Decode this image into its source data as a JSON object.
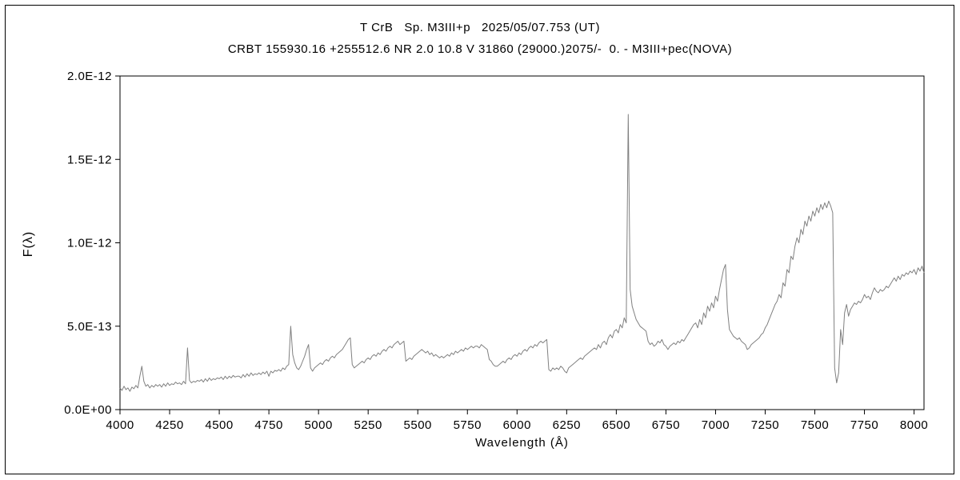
{
  "chart_data": {
    "type": "line",
    "title": "T CrB   Sp. M3III+p   2025/05/07.753 (UT)",
    "subtitle": "CRBT 155930.16 +255512.6 NR 2.0 10.8 V 31860 (29000.)2075/-  0. - M3III+pec(NOVA)",
    "xlabel": "Wavelength (Å)",
    "ylabel": "F(λ)",
    "xlim": [
      4000,
      8050
    ],
    "ylim": [
      0,
      2e-12
    ],
    "grid": false,
    "legend": null,
    "line_color": "#808080",
    "axis_color": "#000000",
    "x_ticks": [
      {
        "value": 4000,
        "label": "4000"
      },
      {
        "value": 4250,
        "label": "4250"
      },
      {
        "value": 4500,
        "label": "4500"
      },
      {
        "value": 4750,
        "label": "4750"
      },
      {
        "value": 5000,
        "label": "5000"
      },
      {
        "value": 5250,
        "label": "5250"
      },
      {
        "value": 5500,
        "label": "5500"
      },
      {
        "value": 5750,
        "label": "5750"
      },
      {
        "value": 6000,
        "label": "6000"
      },
      {
        "value": 6250,
        "label": "6250"
      },
      {
        "value": 6500,
        "label": "6500"
      },
      {
        "value": 6750,
        "label": "6750"
      },
      {
        "value": 7000,
        "label": "7000"
      },
      {
        "value": 7250,
        "label": "7250"
      },
      {
        "value": 7500,
        "label": "7500"
      },
      {
        "value": 7750,
        "label": "7750"
      },
      {
        "value": 8000,
        "label": "8000"
      }
    ],
    "y_ticks": [
      {
        "value": 0,
        "label": "0.0E+00"
      },
      {
        "value": 5e-13,
        "label": "5.0E-13"
      },
      {
        "value": 1e-12,
        "label": "1.0E-12"
      },
      {
        "value": 1.5e-12,
        "label": "1.5E-12"
      },
      {
        "value": 2e-12,
        "label": "2.0E-12"
      }
    ],
    "series_name": "T CrB spectrum",
    "x_start": 4000,
    "x_step": 10,
    "flux_unit_scale": 1e-13,
    "flux": [
      1.3,
      1.15,
      1.4,
      1.2,
      1.3,
      1.1,
      1.35,
      1.25,
      1.45,
      1.3,
      2.0,
      2.6,
      1.7,
      1.4,
      1.5,
      1.3,
      1.45,
      1.35,
      1.5,
      1.4,
      1.5,
      1.35,
      1.55,
      1.4,
      1.6,
      1.45,
      1.55,
      1.5,
      1.65,
      1.55,
      1.6,
      1.5,
      1.7,
      1.55,
      3.7,
      1.75,
      1.6,
      1.7,
      1.65,
      1.75,
      1.7,
      1.8,
      1.65,
      1.85,
      1.7,
      1.9,
      1.75,
      1.85,
      1.8,
      1.9,
      1.85,
      1.95,
      1.8,
      2.0,
      1.85,
      2.0,
      1.9,
      2.05,
      1.95,
      2.0,
      2.0,
      1.9,
      2.1,
      1.95,
      2.15,
      2.0,
      2.2,
      2.05,
      2.15,
      2.1,
      2.2,
      2.1,
      2.25,
      2.15,
      2.3,
      2.0,
      2.3,
      2.2,
      2.35,
      2.3,
      2.4,
      2.3,
      2.5,
      2.4,
      2.6,
      2.7,
      5.0,
      3.3,
      2.8,
      2.5,
      2.4,
      2.6,
      2.9,
      3.2,
      3.6,
      3.9,
      2.5,
      2.3,
      2.5,
      2.6,
      2.7,
      2.8,
      2.7,
      2.9,
      3.0,
      2.9,
      3.1,
      3.2,
      3.1,
      3.3,
      3.4,
      3.5,
      3.6,
      3.8,
      4.0,
      4.2,
      4.3,
      2.7,
      2.5,
      2.6,
      2.7,
      2.8,
      2.9,
      2.8,
      3.0,
      3.1,
      3.0,
      3.2,
      3.3,
      3.2,
      3.4,
      3.3,
      3.5,
      3.6,
      3.5,
      3.7,
      3.8,
      3.7,
      3.9,
      4.0,
      4.1,
      3.9,
      4.0,
      4.1,
      2.9,
      3.0,
      3.1,
      3.0,
      3.2,
      3.3,
      3.4,
      3.5,
      3.6,
      3.5,
      3.4,
      3.5,
      3.3,
      3.4,
      3.2,
      3.3,
      3.2,
      3.1,
      3.2,
      3.1,
      3.2,
      3.3,
      3.2,
      3.4,
      3.3,
      3.5,
      3.4,
      3.5,
      3.6,
      3.5,
      3.7,
      3.6,
      3.7,
      3.8,
      3.7,
      3.8,
      3.8,
      3.7,
      3.9,
      3.8,
      3.7,
      3.6,
      3.0,
      2.9,
      2.7,
      2.6,
      2.6,
      2.7,
      2.8,
      2.9,
      2.8,
      3.0,
      3.1,
      3.0,
      3.2,
      3.3,
      3.2,
      3.4,
      3.3,
      3.5,
      3.6,
      3.5,
      3.7,
      3.8,
      3.7,
      3.9,
      3.8,
      4.0,
      4.1,
      4.0,
      4.1,
      4.2,
      2.4,
      2.3,
      2.5,
      2.4,
      2.5,
      2.4,
      2.6,
      2.5,
      2.3,
      2.2,
      2.5,
      2.6,
      2.7,
      2.8,
      2.9,
      3.0,
      3.1,
      3.0,
      3.2,
      3.3,
      3.4,
      3.5,
      3.6,
      3.7,
      3.6,
      3.9,
      3.7,
      4.0,
      4.1,
      3.9,
      4.3,
      4.5,
      4.3,
      4.7,
      4.8,
      4.6,
      5.1,
      4.9,
      5.5,
      5.2,
      17.7,
      7.2,
      6.2,
      5.8,
      5.4,
      5.2,
      5.0,
      4.9,
      4.8,
      4.7,
      4.1,
      3.9,
      4.0,
      3.8,
      3.9,
      4.1,
      4.0,
      4.2,
      3.9,
      3.8,
      3.6,
      3.8,
      3.9,
      4.0,
      3.9,
      4.1,
      4.0,
      4.2,
      4.1,
      4.3,
      4.5,
      4.7,
      4.9,
      5.1,
      5.2,
      4.9,
      5.4,
      5.1,
      5.8,
      5.5,
      6.2,
      5.9,
      6.4,
      6.1,
      6.8,
      6.5,
      7.2,
      7.8,
      8.4,
      8.7,
      6.0,
      4.8,
      4.6,
      4.4,
      4.3,
      4.2,
      4.3,
      4.1,
      4.0,
      3.9,
      3.6,
      3.7,
      3.9,
      4.0,
      4.1,
      4.2,
      4.3,
      4.5,
      4.6,
      4.9,
      5.1,
      5.4,
      5.7,
      6.0,
      6.3,
      6.5,
      6.9,
      6.7,
      7.6,
      7.4,
      8.4,
      8.2,
      9.2,
      9.0,
      9.8,
      10.3,
      10.0,
      10.8,
      10.5,
      11.3,
      11.0,
      11.6,
      11.3,
      11.9,
      11.6,
      12.1,
      11.8,
      12.3,
      12.0,
      12.4,
      12.1,
      12.5,
      12.2,
      11.8,
      2.5,
      1.6,
      2.2,
      4.8,
      3.9,
      5.8,
      6.3,
      5.6,
      6.0,
      6.2,
      6.4,
      6.3,
      6.5,
      6.4,
      6.6,
      6.9,
      6.7,
      6.8,
      6.6,
      7.0,
      7.3,
      7.1,
      7.0,
      7.2,
      7.1,
      7.2,
      7.4,
      7.3,
      7.5,
      7.7,
      7.9,
      7.7,
      8.0,
      7.8,
      8.1,
      8.0,
      8.2,
      8.1,
      8.3,
      8.2,
      8.4,
      8.1,
      8.5,
      8.3,
      8.6,
      8.2
    ]
  }
}
